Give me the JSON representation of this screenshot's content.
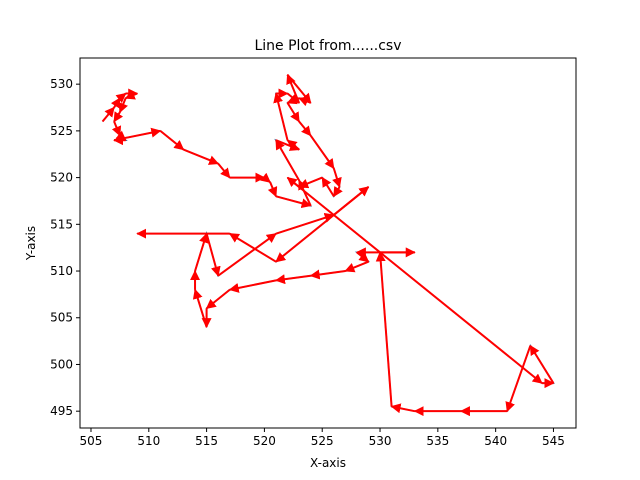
{
  "chart_data": {
    "type": "line",
    "title": "Line Plot from......csv",
    "xlabel": "X-axis",
    "ylabel": "Y-axis",
    "xlim": [
      504.05,
      546.95
    ],
    "ylim": [
      493.2,
      532.8
    ],
    "xticks": [
      505,
      510,
      515,
      520,
      525,
      530,
      535,
      540,
      545
    ],
    "yticks": [
      495,
      500,
      505,
      510,
      515,
      520,
      525,
      530
    ],
    "grid": false,
    "legend": "none",
    "colors": {
      "line": "#1f77b4",
      "arrow": "#ff0000"
    },
    "series": [
      {
        "x": [
          506,
          507,
          507.5,
          508,
          509,
          508,
          507.5,
          507,
          507.5,
          508,
          507,
          511,
          513,
          516,
          517,
          520,
          520.5,
          521,
          524,
          523,
          521,
          523,
          522,
          521,
          522,
          523,
          522,
          524,
          523,
          522,
          523,
          524,
          526,
          526.5,
          526,
          525,
          523,
          522,
          544,
          545,
          543,
          541,
          537,
          533,
          531,
          530,
          533,
          528,
          529,
          527,
          524,
          521,
          517,
          515,
          515,
          514,
          514,
          515,
          516,
          521,
          526,
          529,
          521,
          517,
          509
        ],
        "y": [
          526,
          527.5,
          528.5,
          529,
          529,
          528.5,
          527,
          526,
          524.5,
          524,
          524,
          525,
          523,
          521.5,
          520,
          520,
          519.5,
          518,
          517,
          519.7,
          524,
          523,
          524,
          529,
          529,
          528,
          531,
          528,
          528.5,
          528,
          526,
          524.5,
          521,
          519,
          518,
          520,
          519,
          520,
          498,
          498,
          502,
          495,
          495,
          495,
          495.5,
          512,
          512,
          512,
          511,
          510,
          509.5,
          509,
          508,
          506,
          504,
          508,
          510,
          514,
          509.5,
          514,
          516,
          519,
          511,
          514,
          514
        ]
      }
    ]
  }
}
